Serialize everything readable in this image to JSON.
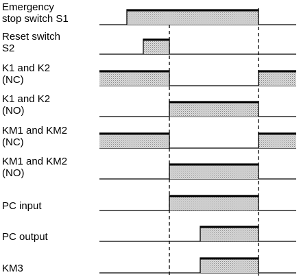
{
  "diagram": {
    "signals": [
      {
        "lines": [
          "Emergency",
          "stop switch S1"
        ],
        "high": [
          [
            185,
            377
          ]
        ]
      },
      {
        "lines": [
          "Reset switch",
          "S2"
        ],
        "high": [
          [
            209,
            247
          ]
        ]
      },
      {
        "lines": [
          "K1 and K2",
          "(NC)"
        ],
        "high": [
          [
            145,
            247
          ],
          [
            377,
            432
          ]
        ]
      },
      {
        "lines": [
          "K1 and K2",
          "(NO)"
        ],
        "high": [
          [
            247,
            377
          ]
        ]
      },
      {
        "lines": [
          "KM1 and KM2",
          "(NC)"
        ],
        "high": [
          [
            145,
            247
          ],
          [
            377,
            432
          ]
        ]
      },
      {
        "lines": [
          "KM1 and KM2",
          "(NO)"
        ],
        "high": [
          [
            247,
            377
          ]
        ]
      },
      {
        "lines": [
          "PC input"
        ],
        "high": [
          [
            247,
            377
          ]
        ]
      },
      {
        "lines": [
          "PC output"
        ],
        "high": [
          [
            292,
            377
          ]
        ]
      },
      {
        "lines": [
          "KM3"
        ],
        "high": [
          [
            292,
            377
          ]
        ]
      }
    ],
    "colors": {
      "line": "#000000",
      "fill": "#d4d4d4"
    }
  }
}
